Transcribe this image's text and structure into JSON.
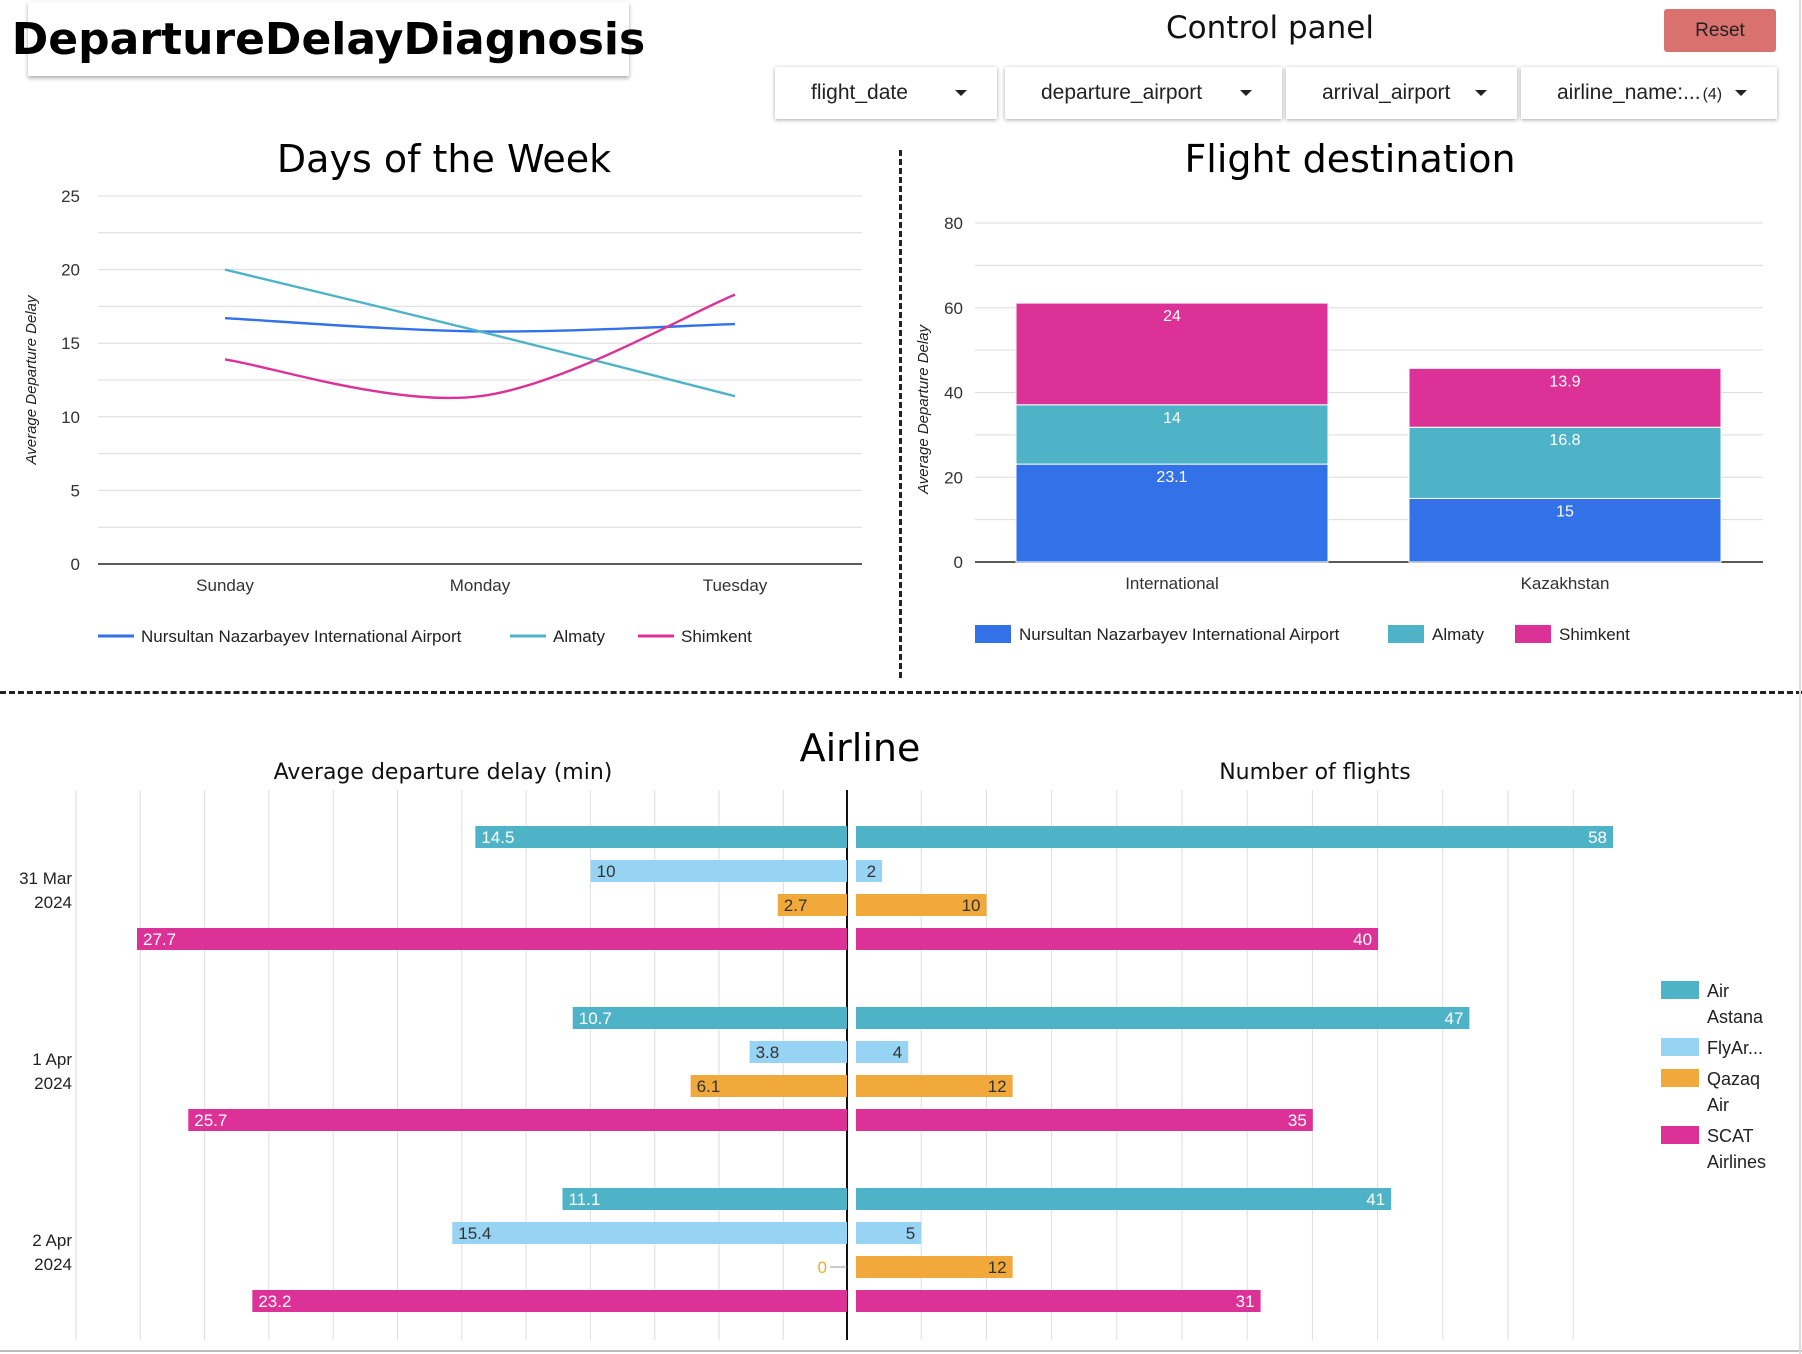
{
  "header": {
    "title": "DepartureDelayDiagnosis",
    "control_panel_title": "Control panel",
    "reset_label": "Reset"
  },
  "filters": [
    {
      "label": "flight_date",
      "count": ""
    },
    {
      "label": "departure_airport",
      "count": ""
    },
    {
      "label": "arrival_airport",
      "count": ""
    },
    {
      "label": "airline_name:...",
      "count": "(4)"
    }
  ],
  "sections": {
    "airline_title": "Airline",
    "left_subtitle": "Average departure delay (min)",
    "right_subtitle": "Number of flights"
  },
  "colors": {
    "nursultan": "#3271e7",
    "almaty": "#4fb3c8",
    "shimkent": "#dc3297",
    "air_astana": "#4fb3c8",
    "flyarystan": "#97d4f3",
    "qazaq_air": "#f2a93b",
    "scat": "#dc3297"
  },
  "chart_data": [
    {
      "type": "line",
      "title": "Days of the Week",
      "xlabel": "",
      "ylabel": "Average Departure Delay",
      "categories": [
        "Sunday",
        "Monday",
        "Tuesday"
      ],
      "ylim": [
        0,
        25
      ],
      "yticks": [
        "0",
        "5",
        "10",
        "15",
        "20",
        "25"
      ],
      "series": [
        {
          "name": "Nursultan Nazarbayev International Airport",
          "color": "#3271e7",
          "values": [
            16.7,
            15.8,
            16.3
          ]
        },
        {
          "name": "Almaty",
          "color": "#4fb3c8",
          "values": [
            20.0,
            15.8,
            11.4
          ]
        },
        {
          "name": "Shimkent",
          "color": "#dc3297",
          "values": [
            13.9,
            11.4,
            18.3
          ]
        }
      ],
      "legend": "bottom",
      "grid": true
    },
    {
      "type": "bar",
      "stacked": true,
      "title": "Flight destination",
      "ylabel": "Average Departure Delay",
      "categories": [
        "International",
        "Kazakhstan"
      ],
      "ylim": [
        0,
        80
      ],
      "yticks": [
        "0",
        "20",
        "40",
        "60",
        "80"
      ],
      "series": [
        {
          "name": "Nursultan Nazarbayev International Airport",
          "color": "#3271e7",
          "values": [
            23.1,
            15
          ],
          "labels": [
            "23.1",
            "15"
          ]
        },
        {
          "name": "Almaty",
          "color": "#4fb3c8",
          "values": [
            14,
            16.8
          ],
          "labels": [
            "14",
            "16.8"
          ]
        },
        {
          "name": "Shimkent",
          "color": "#dc3297",
          "values": [
            24,
            13.9
          ],
          "labels": [
            "24",
            "13.9"
          ]
        }
      ],
      "legend": "bottom",
      "grid": true
    },
    {
      "type": "bar",
      "orientation": "horizontal",
      "title": "Average departure delay (min)",
      "categories": [
        "31 Mar 2024",
        "1 Apr 2024",
        "2 Apr 2024"
      ],
      "xlim": [
        0,
        30
      ],
      "series": [
        {
          "name": "Air Astana",
          "color": "#4fb3c8",
          "values": [
            14.5,
            10.7,
            11.1
          ],
          "labels": [
            "14.5",
            "10.7",
            "11.1"
          ]
        },
        {
          "name": "FlyAr...",
          "color": "#97d4f3",
          "values": [
            10,
            3.8,
            15.4
          ],
          "labels": [
            "10",
            "3.8",
            "15.4"
          ]
        },
        {
          "name": "Qazaq Air",
          "color": "#f2a93b",
          "values": [
            2.7,
            6.1,
            0
          ],
          "labels": [
            "2.7",
            "6.1",
            "0"
          ]
        },
        {
          "name": "SCAT Airlines",
          "color": "#dc3297",
          "values": [
            27.7,
            25.7,
            23.2
          ],
          "labels": [
            "27.7",
            "25.7",
            "23.2"
          ]
        }
      ],
      "grid": true
    },
    {
      "type": "bar",
      "orientation": "horizontal",
      "title": "Number of flights",
      "categories": [
        "31 Mar 2024",
        "1 Apr 2024",
        "2 Apr 2024"
      ],
      "xlim": [
        0,
        60
      ],
      "series": [
        {
          "name": "Air Astana",
          "color": "#4fb3c8",
          "values": [
            58,
            47,
            41
          ],
          "labels": [
            "58",
            "47",
            "41"
          ]
        },
        {
          "name": "FlyAr...",
          "color": "#97d4f3",
          "values": [
            2,
            4,
            5
          ],
          "labels": [
            "2",
            "4",
            "5"
          ]
        },
        {
          "name": "Qazaq Air",
          "color": "#f2a93b",
          "values": [
            10,
            12,
            12
          ],
          "labels": [
            "10",
            "12",
            "12"
          ]
        },
        {
          "name": "SCAT Airlines",
          "color": "#dc3297",
          "values": [
            40,
            35,
            31
          ],
          "labels": [
            "40",
            "35",
            "31"
          ]
        }
      ],
      "legend": "right",
      "legend_labels": [
        [
          "Air",
          "Astana"
        ],
        [
          "FlyAr..."
        ],
        [
          "Qazaq",
          "Air"
        ],
        [
          "SCAT",
          "Airlines"
        ]
      ],
      "category_labels": [
        [
          "31 Mar",
          "2024"
        ],
        [
          "1 Apr",
          "2024"
        ],
        [
          "2 Apr",
          "2024"
        ]
      ],
      "grid": true
    }
  ]
}
